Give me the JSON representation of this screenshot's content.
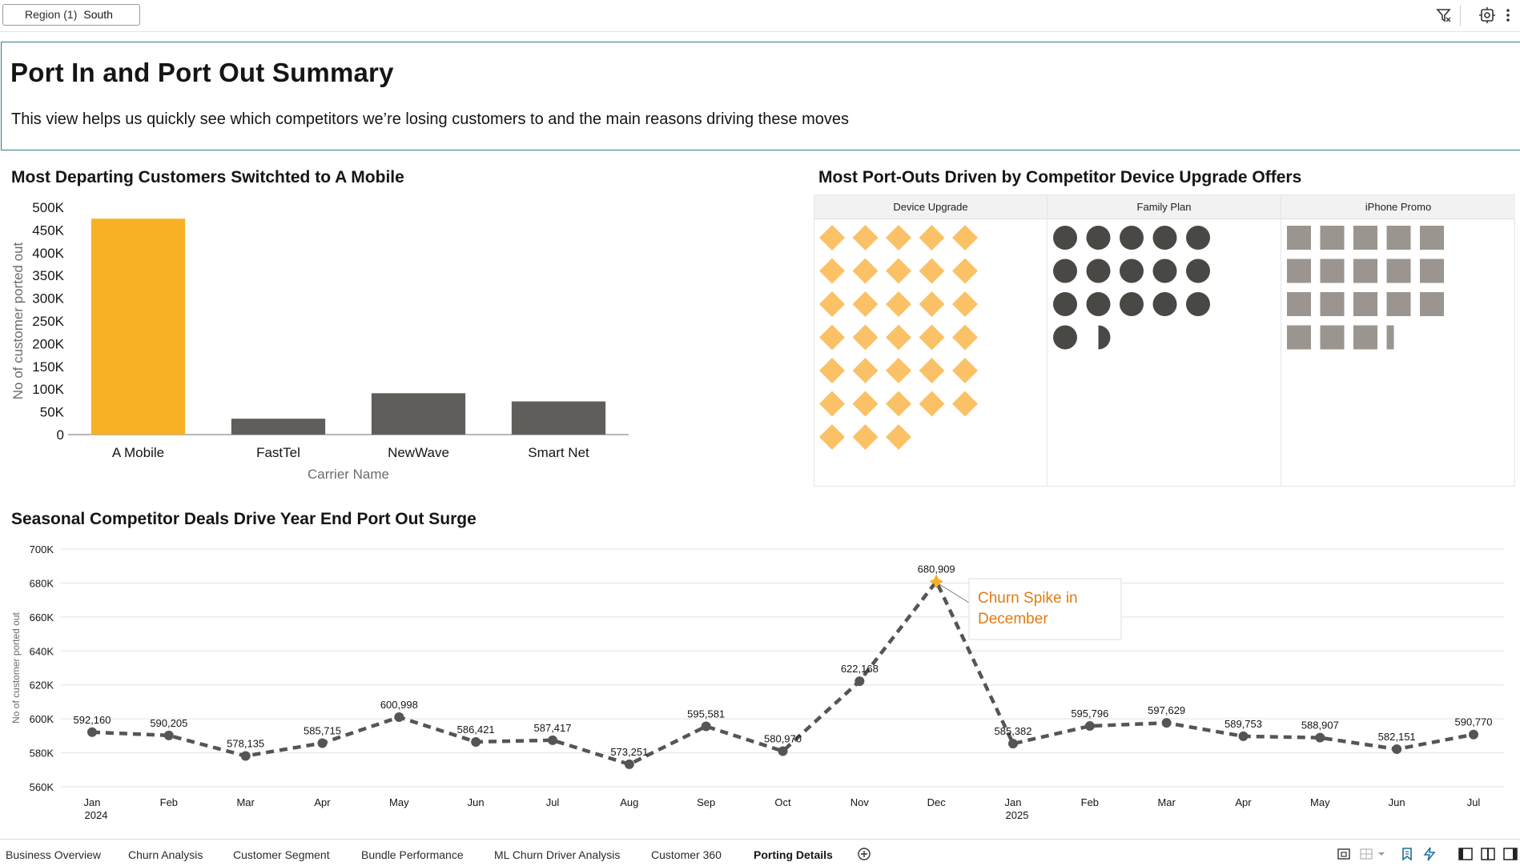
{
  "filter_bar": {
    "region_label": "Region (1)",
    "region_value": "South",
    "icons": [
      "filter-icon",
      "settings-icon",
      "more-icon"
    ]
  },
  "header": {
    "title": "Port In and Port Out Summary",
    "subtitle": "This view helps us quickly see which competitors we’re losing customers to and the main reasons driving these moves"
  },
  "bar_section": {
    "title": "Most Departing Customers Switchted to A Mobile"
  },
  "icon_section": {
    "title": "Most Port-Outs Driven by Competitor Device Upgrade Offers"
  },
  "line_section": {
    "title": "Seasonal Competitor Deals Drive Year End Port Out Surge"
  },
  "colors": {
    "highlight": "#f8b125",
    "bar_default": "#5f5e5a",
    "diamond": "#fbc166",
    "circle": "#4a4844",
    "square": "#9a958e",
    "line": "#555555",
    "annotation_text": "#e07b16"
  },
  "chart_data": [
    {
      "type": "bar",
      "categories": [
        "A Mobile",
        "FastTel",
        "NewWave",
        "Smart Net"
      ],
      "values": [
        475000,
        35000,
        91000,
        73000
      ],
      "highlight_category": "A Mobile",
      "xlabel": "Carrier Name",
      "ylabel": "No of customer ported out",
      "ylim": [
        0,
        500000
      ],
      "yticks": [
        0,
        50000,
        100000,
        150000,
        200000,
        250000,
        300000,
        350000,
        400000,
        450000,
        500000
      ],
      "ytick_labels": [
        "0",
        "50K",
        "100K",
        "150K",
        "200K",
        "250K",
        "300K",
        "350K",
        "400K",
        "450K",
        "500K"
      ]
    },
    {
      "type": "pictogram",
      "columns": [
        "Device Upgrade",
        "Family Plan",
        "iPhone Promo"
      ],
      "icon_counts": [
        33,
        16.5,
        18.3
      ],
      "shapes": [
        "diamond",
        "circle",
        "square"
      ]
    },
    {
      "type": "line",
      "x": [
        "Jan",
        "Feb",
        "Mar",
        "Apr",
        "May",
        "Jun",
        "Jul",
        "Aug",
        "Sep",
        "Oct",
        "Nov",
        "Dec",
        "Jan",
        "Feb",
        "Mar",
        "Apr",
        "May",
        "Jun",
        "Jul"
      ],
      "year_labels": [
        {
          "index": 0,
          "label": "2024"
        },
        {
          "index": 12,
          "label": "2025"
        }
      ],
      "values": [
        592160,
        590205,
        578135,
        585715,
        600998,
        586421,
        587417,
        573251,
        595581,
        580970,
        622168,
        680909,
        585382,
        595796,
        597629,
        589753,
        588907,
        582151,
        590770
      ],
      "value_labels": [
        "592,160",
        "590,205",
        "578,135",
        "585,715",
        "600,998",
        "586,421",
        "587,417",
        "573,251",
        "595,581",
        "580,970",
        "622,168",
        "680,909",
        "585,382",
        "595,796",
        "597,629",
        "589,753",
        "588,907",
        "582,151",
        "590,770"
      ],
      "highlight_index": 11,
      "annotation": "Churn Spike in December",
      "ylabel": "No of customer ported out",
      "ylim": [
        560000,
        700000
      ],
      "yticks": [
        560000,
        580000,
        600000,
        620000,
        640000,
        660000,
        680000,
        700000
      ],
      "ytick_labels": [
        "560K",
        "580K",
        "600K",
        "620K",
        "640K",
        "660K",
        "680K",
        "700K"
      ],
      "grid": true
    }
  ],
  "tabs": [
    {
      "label": "Business Overview",
      "active": false
    },
    {
      "label": "Churn Analysis",
      "active": false
    },
    {
      "label": "Customer Segment",
      "active": false
    },
    {
      "label": "Bundle Performance",
      "active": false
    },
    {
      "label": "ML Churn Driver Analysis",
      "active": false
    },
    {
      "label": "Customer 360",
      "active": false
    },
    {
      "label": "Porting Details",
      "active": true
    }
  ],
  "bottom_icons": [
    "add-tab-icon",
    "present-icon",
    "grid-icon",
    "chevron-down-icon",
    "bookmark-icon",
    "lightning-icon",
    "panel-left-icon",
    "panel-split-icon",
    "panel-right-icon"
  ]
}
